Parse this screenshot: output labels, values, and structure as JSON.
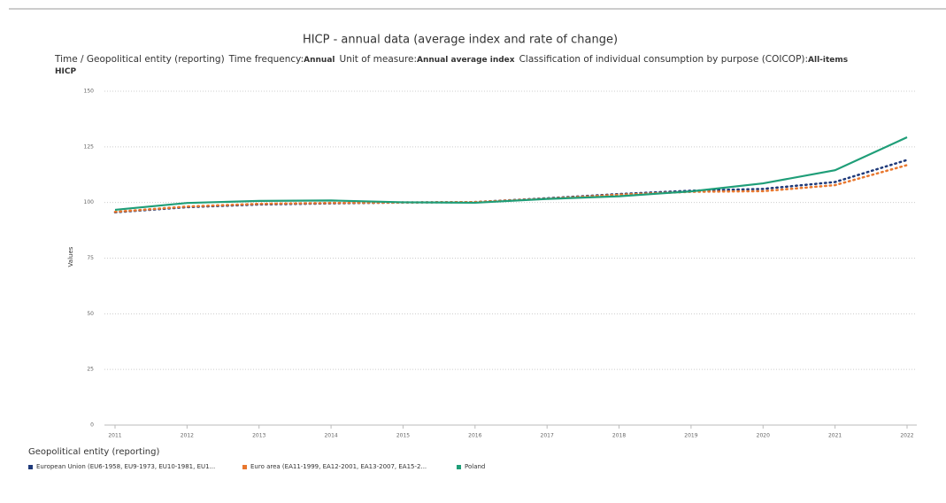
{
  "chart_data": {
    "type": "line",
    "title": "HICP - annual data (average index and rate of change)",
    "subtitle": [
      {
        "name": "Time / Geopolitical entity (reporting)"
      },
      {
        "name": "Time frequency:",
        "value": "Annual"
      },
      {
        "name": "Unit of measure:",
        "value": "Annual average index"
      },
      {
        "name": "Classification of individual consumption by purpose (COICOP):",
        "value": "All-items HICP"
      }
    ],
    "y_label": "Values",
    "legend_title": "Geopolitical entity (reporting)",
    "categories": [
      "2011",
      "2012",
      "2013",
      "2014",
      "2015",
      "2016",
      "2017",
      "2018",
      "2019",
      "2020",
      "2021",
      "2022"
    ],
    "series": [
      {
        "name": "European Union (EU6-1958, EU9-1973, EU10-1981, EU1...",
        "color": "#1f3a7a",
        "dash": "dotted",
        "values": [
          95.6,
          97.9,
          99.1,
          99.6,
          100,
          100.2,
          101.9,
          103.8,
          105.3,
          106.1,
          109.2,
          119.1
        ]
      },
      {
        "name": "Euro area (EA11-1999, EA12-2001, EA13-2007, EA15-2...",
        "color": "#e8772e",
        "dash": "dotted",
        "values": [
          95.8,
          98.2,
          99.4,
          99.8,
          100,
          100.2,
          101.7,
          103.5,
          104.8,
          105.1,
          107.8,
          116.8
        ]
      },
      {
        "name": "Poland",
        "color": "#1f9e78",
        "dash": "solid",
        "values": [
          96.7,
          99.8,
          100.7,
          100.9,
          100.1,
          99.9,
          101.6,
          102.8,
          105,
          108.6,
          114.5,
          129.3
        ]
      }
    ],
    "ylim": [
      0,
      150
    ],
    "yticks": [
      0,
      25,
      50,
      75,
      100,
      125,
      150
    ],
    "grid": true
  }
}
